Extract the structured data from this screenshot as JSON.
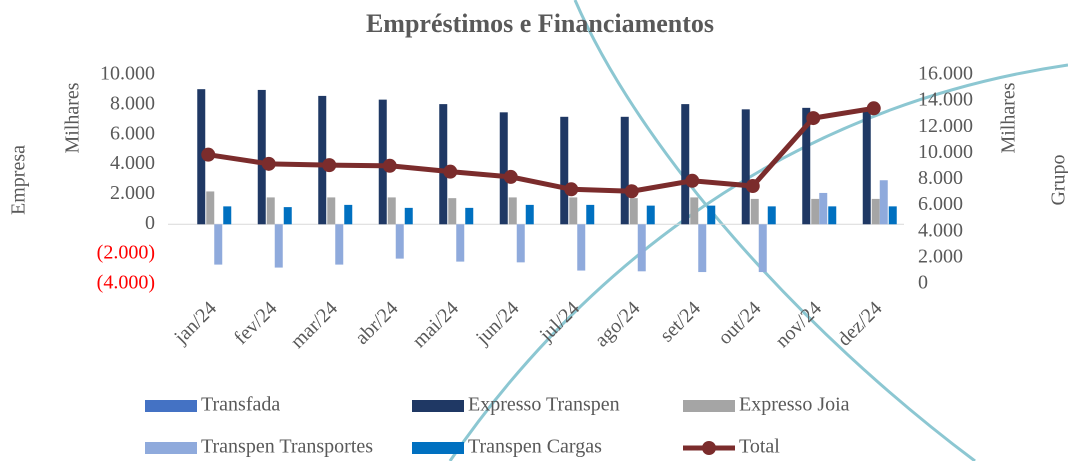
{
  "chart_data": {
    "type": "bar",
    "title": "Empréstimos e Financiamentos",
    "ylabel": "Milhares",
    "ylabel_outer": "Empresa",
    "y2label": "Milhares",
    "y2label_outer": "Grupo",
    "categories": [
      "jan/24",
      "fev/24",
      "mar/24",
      "abr/24",
      "mai/24",
      "jun/24",
      "jul/24",
      "ago/24",
      "set/24",
      "out/24",
      "nov/24",
      "dez/24"
    ],
    "series": [
      {
        "name": "Transfada",
        "color": "#4472c4",
        "type": "bar",
        "values": [
          0,
          0,
          0,
          0,
          0,
          0,
          0,
          0,
          0,
          0,
          0,
          0
        ]
      },
      {
        "name": "Expresso Transpen",
        "color": "#1f3864",
        "type": "bar",
        "values": [
          9050,
          9000,
          8600,
          8350,
          8050,
          7500,
          7200,
          7200,
          8050,
          7700,
          7800,
          7700
        ]
      },
      {
        "name": "Expresso Joia",
        "color": "#a5a5a5",
        "type": "bar",
        "values": [
          2200,
          1800,
          1800,
          1800,
          1750,
          1800,
          1800,
          1750,
          1800,
          1700,
          1700,
          1700
        ]
      },
      {
        "name": "Transpen Transportes",
        "color": "#8faadc",
        "type": "bar",
        "values": [
          -2700,
          -2900,
          -2700,
          -2300,
          -2500,
          -2550,
          -3100,
          -3150,
          -3200,
          -3200,
          2100,
          2950
        ]
      },
      {
        "name": "Transpen Cargas",
        "color": "#0070c0",
        "type": "bar",
        "values": [
          1200,
          1150,
          1300,
          1100,
          1100,
          1300,
          1300,
          1250,
          1250,
          1200,
          1200,
          1200
        ]
      },
      {
        "name": "Total",
        "color": "#7b2c2c",
        "type": "line",
        "axis": "y2",
        "values": [
          9900,
          9200,
          9100,
          9050,
          8600,
          8200,
          7250,
          7100,
          7900,
          7500,
          12700,
          13450
        ]
      }
    ],
    "ylim": [
      -4000,
      10000
    ],
    "yticks": [
      {
        "value": -4000,
        "label": "(4.000)"
      },
      {
        "value": -2000,
        "label": "(2.000)"
      },
      0,
      {
        "value": 2000,
        "label": "2.000"
      },
      {
        "value": 4000,
        "label": "4.000"
      },
      {
        "value": 6000,
        "label": "6.000"
      },
      {
        "value": 8000,
        "label": "8.000"
      },
      {
        "value": 10000,
        "label": "10.000"
      }
    ],
    "negative_tick_color": "#ff0000",
    "y2lim": [
      0,
      16000
    ],
    "y2ticks": [
      0,
      {
        "value": 2000,
        "label": "2.000"
      },
      {
        "value": 4000,
        "label": "4.000"
      },
      {
        "value": 6000,
        "label": "6.000"
      },
      {
        "value": 8000,
        "label": "8.000"
      },
      {
        "value": 10000,
        "label": "10.000"
      },
      {
        "value": 12000,
        "label": "12.000"
      },
      {
        "value": 14000,
        "label": "14.000"
      },
      {
        "value": 16000,
        "label": "16.000"
      }
    ],
    "grid": false
  }
}
